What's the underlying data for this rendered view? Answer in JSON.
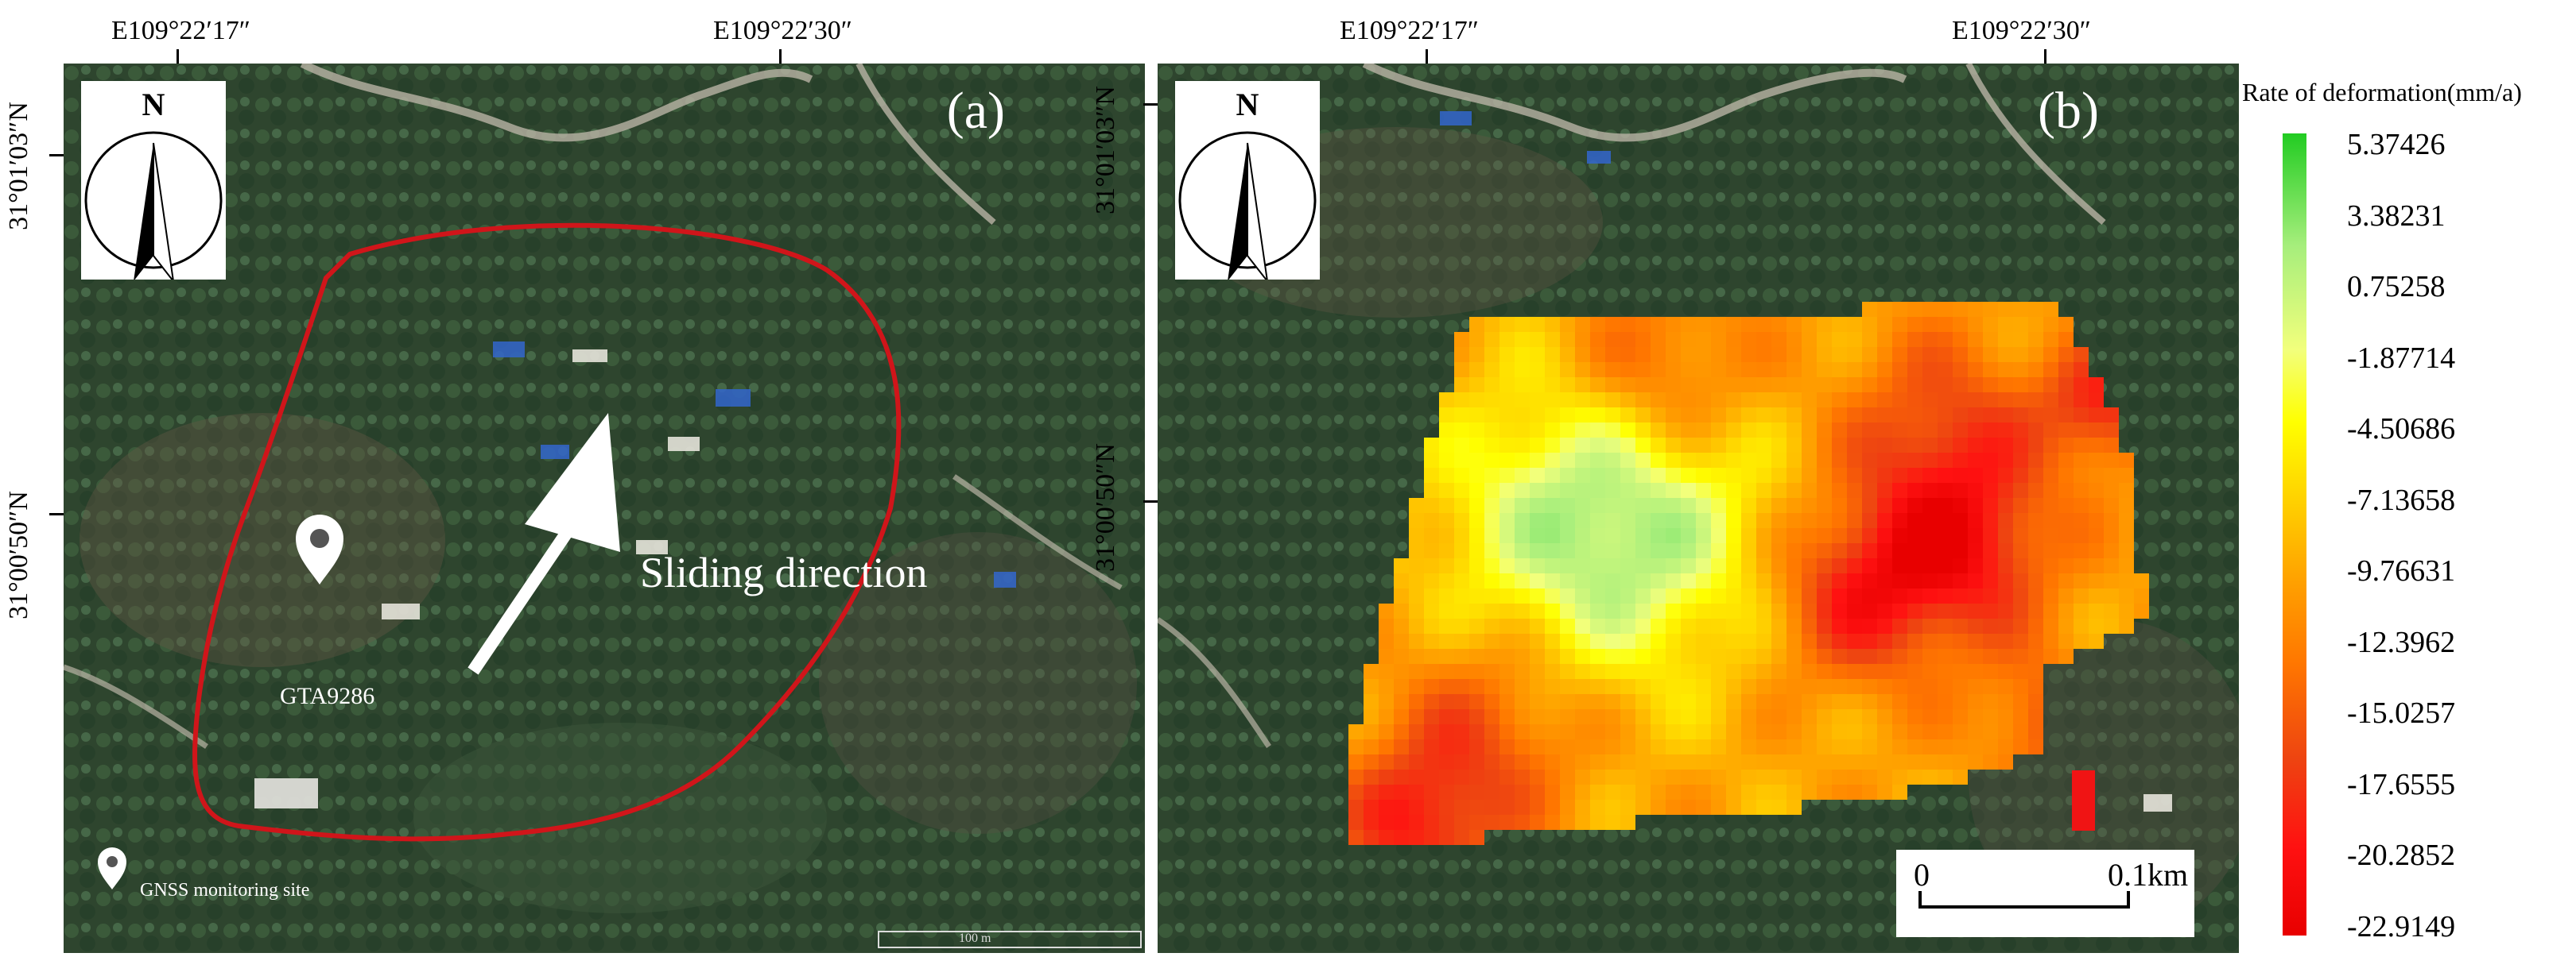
{
  "axes": {
    "lon_left": "E109°22′17″",
    "lon_right": "E109°22′30″",
    "lat_top": "31°01′03″N",
    "lat_bottom": "31°00′50″N"
  },
  "panel_a": {
    "letter": "(a)",
    "north_label": "N",
    "arrow_label": "Sliding direction",
    "station_label": "GTA9286",
    "legend_text": "GNSS monitoring site",
    "scale_text": "100 m"
  },
  "panel_b": {
    "letter": "(b)",
    "north_label": "N",
    "scale_start": "0",
    "scale_end": "0.1km"
  },
  "legend": {
    "title": "Rate of deformation(mm/a)",
    "values": [
      "5.37426",
      "3.38231",
      "0.75258",
      "-1.87714",
      "-4.50686",
      "-7.13658",
      "-9.76631",
      "-12.3962",
      "-15.0257",
      "-17.6555",
      "-20.2852",
      "-22.9149"
    ],
    "color_max": "#22cc22",
    "color_mid": "#ffff00",
    "color_min": "#e80000"
  },
  "colors": {
    "boundary": "#d0151a",
    "annotation": "#ffffff"
  }
}
